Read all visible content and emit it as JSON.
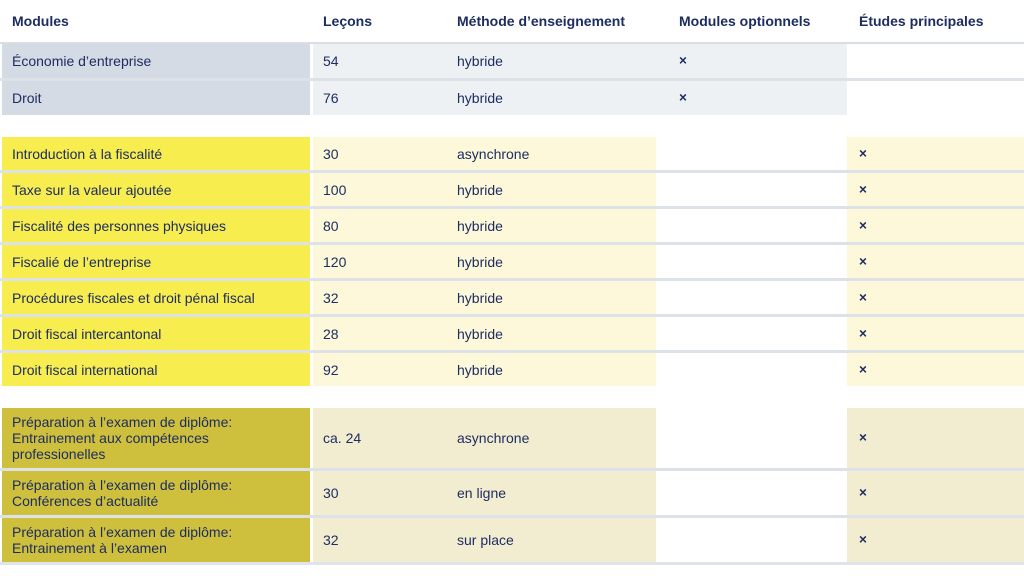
{
  "table": {
    "columns": [
      {
        "label": "Modules"
      },
      {
        "label": "Leçons"
      },
      {
        "label": "Méthode d’enseignement"
      },
      {
        "label": "Modules optionnels"
      },
      {
        "label": "Études principales"
      }
    ],
    "cross_mark": "×",
    "colors": {
      "text": "#1d2d61",
      "header_border": "#d9dee5",
      "row_divider": "#dde2e9",
      "section1_module_bg": "#d5dbe4",
      "section1_tint_bg": "#eef1f4",
      "section2_module_bg": "#f8ed4e",
      "section2_tint_bg": "#fcf8d9",
      "section3_module_bg": "#cec03d",
      "section3_tint_bg": "#f2edd1"
    },
    "sections": [
      {
        "name": "base-modules",
        "module_bg": "#d5dbe4",
        "tint_bg": "#eef1f4",
        "optional_tinted": true,
        "principal_tinted": false,
        "rows": [
          {
            "module": "Économie d’entreprise",
            "lessons": "54",
            "method": "hybride",
            "optional": "×",
            "principal": ""
          },
          {
            "module": "Droit",
            "lessons": "76",
            "method": "hybride",
            "optional": "×",
            "principal": ""
          }
        ]
      },
      {
        "name": "fiscal-modules",
        "module_bg": "#f8ed4e",
        "tint_bg": "#fcf8d9",
        "optional_tinted": false,
        "principal_tinted": true,
        "rows": [
          {
            "module": "Introduction à la fiscalité",
            "lessons": "30",
            "method": "asynchrone",
            "optional": "",
            "principal": "×"
          },
          {
            "module": "Taxe sur la valeur ajoutée",
            "lessons": "100",
            "method": "hybride",
            "optional": "",
            "principal": "×"
          },
          {
            "module": "Fiscalité des personnes physiques",
            "lessons": "80",
            "method": "hybride",
            "optional": "",
            "principal": "×"
          },
          {
            "module": "Fiscalié de l’entreprise",
            "lessons": "120",
            "method": "hybride",
            "optional": "",
            "principal": "×"
          },
          {
            "module": "Procédures fiscales et droit pénal fiscal",
            "lessons": "32",
            "method": "hybride",
            "optional": "",
            "principal": "×"
          },
          {
            "module": "Droit fiscal intercantonal",
            "lessons": "28",
            "method": "hybride",
            "optional": "",
            "principal": "×"
          },
          {
            "module": "Droit fiscal international",
            "lessons": "92",
            "method": "hybride",
            "optional": "",
            "principal": "×"
          }
        ]
      },
      {
        "name": "exam-preparation-modules",
        "module_bg": "#cec03d",
        "tint_bg": "#f2edd1",
        "optional_tinted": false,
        "principal_tinted": true,
        "rows": [
          {
            "module": "Préparation à l’examen de diplôme: Entrainement aux compétences professionelles",
            "lessons": "ca. 24",
            "method": "asynchrone",
            "optional": "",
            "principal": "×"
          },
          {
            "module": "Préparation à l’examen de diplôme: Conférences d’actualité",
            "lessons": "30",
            "method": "en ligne",
            "optional": "",
            "principal": "×"
          },
          {
            "module": "Préparation à l’examen de diplôme: Entrainement à l’examen",
            "lessons": "32",
            "method": "sur place",
            "optional": "",
            "principal": "×"
          }
        ]
      }
    ]
  }
}
